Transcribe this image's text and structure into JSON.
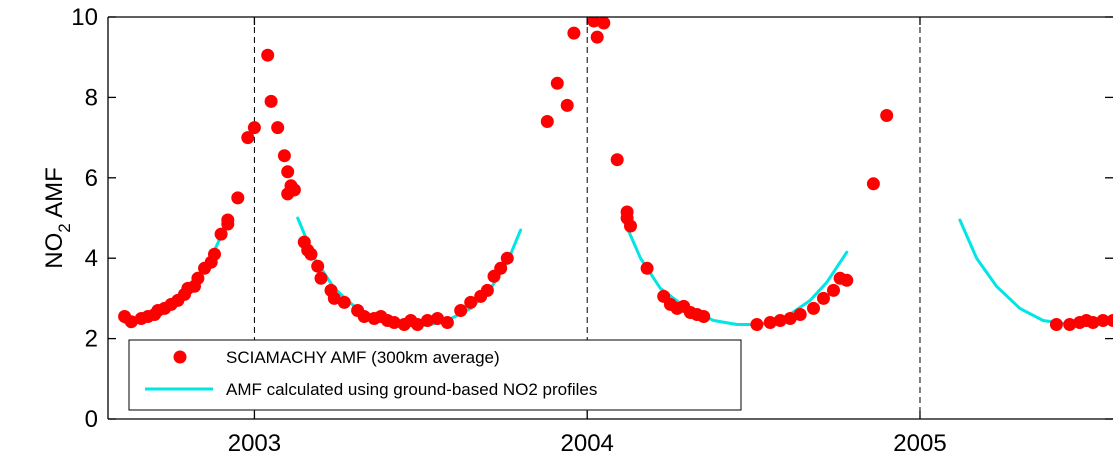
{
  "chart_data": {
    "type": "scatter",
    "ylabel_main": "NO",
    "ylabel_sub": "2",
    "ylabel_rest": " AMF",
    "xlim": [
      2002.56,
      2005.58
    ],
    "ylim": [
      0,
      10
    ],
    "yticks": [
      0,
      2,
      4,
      6,
      8,
      10
    ],
    "xticks": [
      2003,
      2004,
      2005
    ],
    "xtick_labels": [
      "2003",
      "2004",
      "2005"
    ],
    "year_dividers": [
      2003,
      2004,
      2005
    ],
    "colors": {
      "points": "#ff0000",
      "curve": "#00e5e5"
    },
    "legend": {
      "position": "lower-left",
      "entries": [
        "SCIAMACHY AMF (300km average)",
        "AMF calculated using ground-based NO2 profiles"
      ]
    },
    "series": [
      {
        "kind": "scatter",
        "points": [
          [
            2002.61,
            2.55
          ],
          [
            2002.63,
            2.42
          ],
          [
            2002.66,
            2.5
          ],
          [
            2002.68,
            2.55
          ],
          [
            2002.7,
            2.6
          ],
          [
            2002.71,
            2.7
          ],
          [
            2002.73,
            2.75
          ],
          [
            2002.75,
            2.85
          ],
          [
            2002.77,
            2.95
          ],
          [
            2002.79,
            3.1
          ],
          [
            2002.8,
            3.25
          ],
          [
            2002.82,
            3.3
          ],
          [
            2002.83,
            3.5
          ],
          [
            2002.85,
            3.75
          ],
          [
            2002.87,
            3.9
          ],
          [
            2002.88,
            4.1
          ],
          [
            2002.9,
            4.6
          ],
          [
            2002.92,
            4.85
          ],
          [
            2002.92,
            4.95
          ],
          [
            2002.95,
            5.5
          ],
          [
            2002.98,
            7.0
          ],
          [
            2003.0,
            7.25
          ],
          [
            2003.04,
            9.05
          ],
          [
            2003.05,
            7.9
          ],
          [
            2003.07,
            7.25
          ],
          [
            2003.09,
            6.55
          ],
          [
            2003.1,
            6.15
          ],
          [
            2003.1,
            5.6
          ],
          [
            2003.11,
            5.8
          ],
          [
            2003.12,
            5.7
          ],
          [
            2003.15,
            4.4
          ],
          [
            2003.16,
            4.2
          ],
          [
            2003.17,
            4.1
          ],
          [
            2003.19,
            3.8
          ],
          [
            2003.2,
            3.5
          ],
          [
            2003.23,
            3.2
          ],
          [
            2003.24,
            3.0
          ],
          [
            2003.27,
            2.9
          ],
          [
            2003.31,
            2.7
          ],
          [
            2003.33,
            2.55
          ],
          [
            2003.36,
            2.5
          ],
          [
            2003.38,
            2.55
          ],
          [
            2003.4,
            2.45
          ],
          [
            2003.42,
            2.4
          ],
          [
            2003.45,
            2.35
          ],
          [
            2003.47,
            2.45
          ],
          [
            2003.49,
            2.35
          ],
          [
            2003.52,
            2.45
          ],
          [
            2003.55,
            2.5
          ],
          [
            2003.58,
            2.4
          ],
          [
            2003.62,
            2.7
          ],
          [
            2003.65,
            2.9
          ],
          [
            2003.68,
            3.05
          ],
          [
            2003.7,
            3.2
          ],
          [
            2003.72,
            3.55
          ],
          [
            2003.74,
            3.75
          ],
          [
            2003.76,
            4.0
          ],
          [
            2003.88,
            7.4
          ],
          [
            2003.91,
            8.35
          ],
          [
            2003.94,
            7.8
          ],
          [
            2003.96,
            9.6
          ],
          [
            2004.02,
            9.9
          ],
          [
            2004.03,
            9.5
          ],
          [
            2004.05,
            9.85
          ],
          [
            2004.09,
            6.45
          ],
          [
            2004.12,
            5.15
          ],
          [
            2004.12,
            5.0
          ],
          [
            2004.13,
            4.8
          ],
          [
            2004.18,
            3.75
          ],
          [
            2004.23,
            3.05
          ],
          [
            2004.25,
            2.85
          ],
          [
            2004.27,
            2.75
          ],
          [
            2004.29,
            2.8
          ],
          [
            2004.31,
            2.65
          ],
          [
            2004.33,
            2.6
          ],
          [
            2004.35,
            2.55
          ],
          [
            2004.51,
            2.35
          ],
          [
            2004.55,
            2.4
          ],
          [
            2004.58,
            2.45
          ],
          [
            2004.61,
            2.5
          ],
          [
            2004.64,
            2.6
          ],
          [
            2004.68,
            2.75
          ],
          [
            2004.71,
            3.0
          ],
          [
            2004.74,
            3.2
          ],
          [
            2004.76,
            3.5
          ],
          [
            2004.78,
            3.45
          ],
          [
            2004.86,
            5.85
          ],
          [
            2004.9,
            7.55
          ],
          [
            2005.41,
            2.35
          ],
          [
            2005.45,
            2.35
          ],
          [
            2005.48,
            2.4
          ],
          [
            2005.5,
            2.45
          ],
          [
            2005.52,
            2.4
          ],
          [
            2005.55,
            2.45
          ],
          [
            2005.58,
            2.45
          ]
        ]
      },
      {
        "kind": "curve",
        "segments": [
          [
            [
              2002.61,
              2.4
            ],
            [
              2002.68,
              2.6
            ],
            [
              2002.75,
              2.9
            ],
            [
              2002.8,
              3.25
            ],
            [
              2002.85,
              3.75
            ],
            [
              2002.88,
              4.2
            ],
            [
              2002.9,
              4.55
            ]
          ],
          [
            [
              2003.13,
              5.0
            ],
            [
              2003.18,
              4.0
            ],
            [
              2003.24,
              3.25
            ],
            [
              2003.3,
              2.8
            ],
            [
              2003.37,
              2.5
            ],
            [
              2003.45,
              2.35
            ],
            [
              2003.52,
              2.33
            ],
            [
              2003.58,
              2.45
            ],
            [
              2003.65,
              2.75
            ],
            [
              2003.71,
              3.25
            ],
            [
              2003.76,
              3.9
            ],
            [
              2003.8,
              4.7
            ]
          ],
          [
            [
              2004.11,
              4.95
            ],
            [
              2004.16,
              4.0
            ],
            [
              2004.22,
              3.25
            ],
            [
              2004.3,
              2.75
            ],
            [
              2004.38,
              2.45
            ],
            [
              2004.45,
              2.35
            ],
            [
              2004.52,
              2.35
            ],
            [
              2004.6,
              2.55
            ],
            [
              2004.67,
              2.95
            ],
            [
              2004.72,
              3.4
            ],
            [
              2004.78,
              4.15
            ]
          ],
          [
            [
              2005.12,
              4.95
            ],
            [
              2005.17,
              4.0
            ],
            [
              2005.23,
              3.3
            ],
            [
              2005.3,
              2.75
            ],
            [
              2005.37,
              2.45
            ],
            [
              2005.45,
              2.35
            ],
            [
              2005.52,
              2.38
            ],
            [
              2005.58,
              2.42
            ]
          ]
        ]
      }
    ]
  }
}
